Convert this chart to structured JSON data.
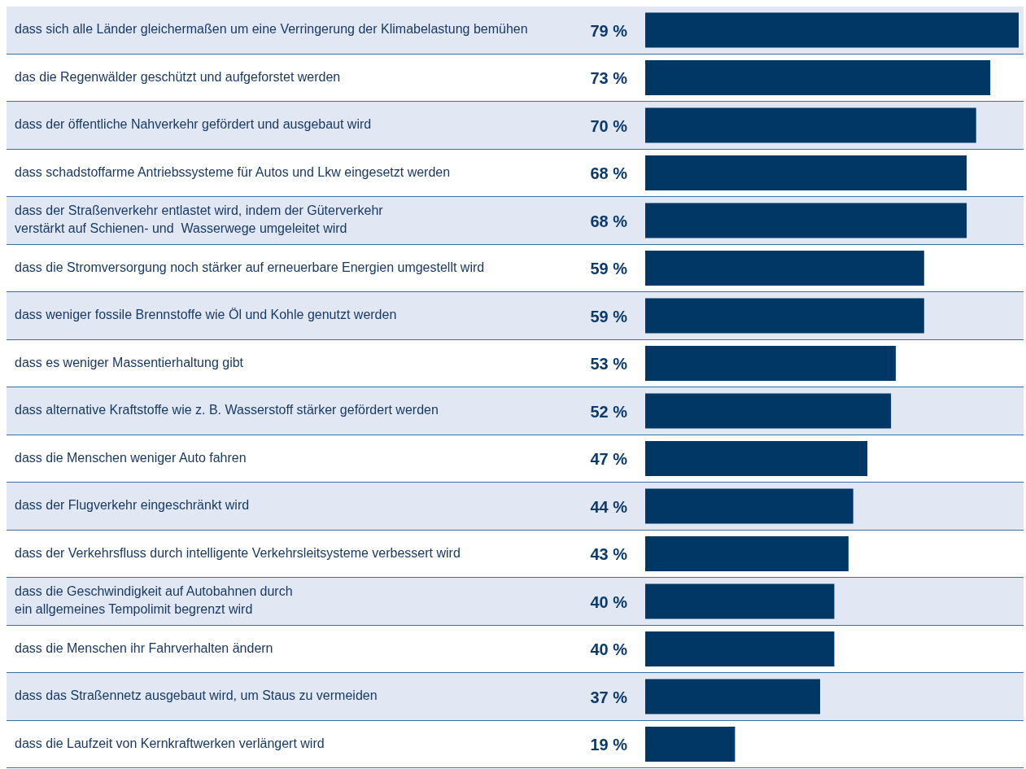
{
  "chart_data": {
    "type": "bar",
    "orientation": "horizontal",
    "categories": [
      "dass sich alle Länder gleichermaßen um eine Verringerung der Klimabelastung bemühen",
      "das die Regenwälder geschützt und aufgeforstet werden",
      "dass der öffentliche Nahverkehr gefördert und ausgebaut wird",
      "dass schadstoffarme Antriebssysteme für Autos und Lkw eingesetzt werden",
      "dass der Straßenverkehr entlastet wird, indem der Güterverkehr\nverstärkt auf Schienen- und  Wasserwege umgeleitet wird",
      "dass die Stromversorgung noch stärker auf erneuerbare Energien umgestellt wird",
      "dass weniger fossile Brennstoffe wie Öl und Kohle genutzt werden",
      "dass es weniger Massentierhaltung gibt",
      "dass alternative Kraftstoffe wie z. B. Wasserstoff stärker gefördert werden",
      "dass die Menschen weniger Auto fahren",
      "dass der Flugverkehr eingeschränkt wird",
      "dass der Verkehrsfluss durch intelligente Verkehrsleitsysteme verbessert wird",
      "dass die Geschwindigkeit auf Autobahnen durch\nein allgemeines Tempolimit begrenzt wird",
      "dass die Menschen ihr Fahrverhalten ändern",
      "dass das Straßennetz ausgebaut wird, um Staus zu vermeiden",
      "dass die Laufzeit von Kernkraftwerken verlängert wird"
    ],
    "values": [
      79,
      73,
      70,
      68,
      68,
      59,
      59,
      53,
      52,
      47,
      44,
      43,
      40,
      40,
      37,
      19
    ],
    "value_labels": [
      "79 %",
      "73 %",
      "70 %",
      "68 %",
      "68 %",
      "59 %",
      "59 %",
      "53 %",
      "52 %",
      "47 %",
      "44 %",
      "43 %",
      "40 %",
      "40 %",
      "37 %",
      "19 %"
    ],
    "color": "#003764"
  }
}
